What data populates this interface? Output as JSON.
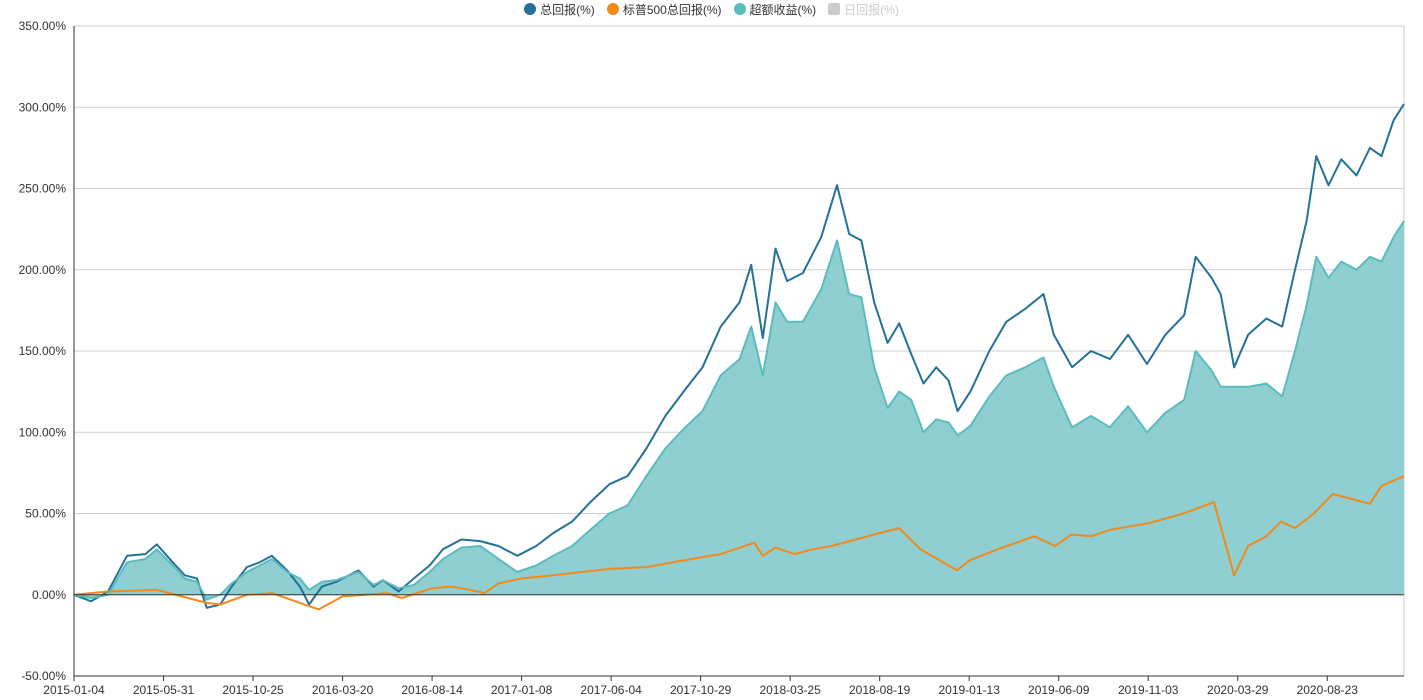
{
  "legend": {
    "items": [
      {
        "label": "总回报(%)",
        "color": "#24719a",
        "active": true
      },
      {
        "label": "标普500总回报(%)",
        "color": "#f2891c",
        "active": true
      },
      {
        "label": "超额收益(%)",
        "color": "#5bbcbd",
        "active": true
      },
      {
        "label": "日回报(%)",
        "color": "#cccccc",
        "active": false
      }
    ]
  },
  "chart_data": {
    "type": "line",
    "grid": true,
    "legend_position": "top-center",
    "ylim": [
      -50,
      350
    ],
    "y_ticks": [
      "-50.00%",
      "0.00%",
      "50.00%",
      "100.00%",
      "150.00%",
      "200.00%",
      "250.00%",
      "300.00%",
      "350.00%"
    ],
    "y_tick_values": [
      -50,
      0,
      50,
      100,
      150,
      200,
      250,
      300,
      350
    ],
    "x_ticks": [
      "2015-01-04",
      "2015-05-31",
      "2015-10-25",
      "2016-03-20",
      "2016-08-14",
      "2017-01-08",
      "2017-06-04",
      "2017-10-29",
      "2018-03-25",
      "2018-08-19",
      "2019-01-13",
      "2019-06-09",
      "2019-11-03",
      "2020-03-29",
      "2020-08-23"
    ],
    "x_range": [
      "2015-01-04",
      "2020-12-27"
    ],
    "series": [
      {
        "name": "总回报(%)",
        "style": "line",
        "color": "#24719a",
        "points": [
          [
            "2015-01-04",
            0
          ],
          [
            "2015-02-01",
            -4
          ],
          [
            "2015-03-01",
            2
          ],
          [
            "2015-04-01",
            24
          ],
          [
            "2015-05-01",
            25
          ],
          [
            "2015-05-20",
            31
          ],
          [
            "2015-06-15",
            20
          ],
          [
            "2015-07-05",
            12
          ],
          [
            "2015-07-25",
            10
          ],
          [
            "2015-08-10",
            -8
          ],
          [
            "2015-09-01",
            -6
          ],
          [
            "2015-09-20",
            5
          ],
          [
            "2015-10-15",
            17
          ],
          [
            "2015-11-05",
            20
          ],
          [
            "2015-11-25",
            24
          ],
          [
            "2015-12-20",
            15
          ],
          [
            "2016-01-10",
            5
          ],
          [
            "2016-01-25",
            -6
          ],
          [
            "2016-02-15",
            5
          ],
          [
            "2016-03-10",
            8
          ],
          [
            "2016-04-15",
            15
          ],
          [
            "2016-05-10",
            5
          ],
          [
            "2016-05-25",
            9
          ],
          [
            "2016-06-20",
            2
          ],
          [
            "2016-07-15",
            10
          ],
          [
            "2016-08-10",
            18
          ],
          [
            "2016-09-01",
            28
          ],
          [
            "2016-10-01",
            34
          ],
          [
            "2016-11-01",
            33
          ],
          [
            "2016-12-01",
            30
          ],
          [
            "2017-01-01",
            24
          ],
          [
            "2017-02-01",
            30
          ],
          [
            "2017-03-01",
            38
          ],
          [
            "2017-04-01",
            45
          ],
          [
            "2017-05-01",
            57
          ],
          [
            "2017-06-01",
            68
          ],
          [
            "2017-07-01",
            73
          ],
          [
            "2017-08-01",
            90
          ],
          [
            "2017-09-01",
            110
          ],
          [
            "2017-10-01",
            125
          ],
          [
            "2017-11-01",
            140
          ],
          [
            "2017-12-01",
            165
          ],
          [
            "2018-01-01",
            180
          ],
          [
            "2018-01-20",
            203
          ],
          [
            "2018-02-08",
            158
          ],
          [
            "2018-03-01",
            213
          ],
          [
            "2018-03-20",
            193
          ],
          [
            "2018-04-15",
            198
          ],
          [
            "2018-05-15",
            220
          ],
          [
            "2018-06-10",
            252
          ],
          [
            "2018-06-30",
            222
          ],
          [
            "2018-07-20",
            218
          ],
          [
            "2018-08-10",
            180
          ],
          [
            "2018-09-01",
            155
          ],
          [
            "2018-09-20",
            167
          ],
          [
            "2018-10-10",
            148
          ],
          [
            "2018-10-30",
            130
          ],
          [
            "2018-11-20",
            140
          ],
          [
            "2018-12-10",
            132
          ],
          [
            "2018-12-25",
            113
          ],
          [
            "2019-01-15",
            125
          ],
          [
            "2019-02-15",
            150
          ],
          [
            "2019-03-15",
            168
          ],
          [
            "2019-04-15",
            176
          ],
          [
            "2019-05-15",
            185
          ],
          [
            "2019-06-01",
            160
          ],
          [
            "2019-07-01",
            140
          ],
          [
            "2019-08-01",
            150
          ],
          [
            "2019-09-01",
            145
          ],
          [
            "2019-10-01",
            160
          ],
          [
            "2019-11-01",
            142
          ],
          [
            "2019-12-01",
            160
          ],
          [
            "2020-01-01",
            172
          ],
          [
            "2020-01-20",
            208
          ],
          [
            "2020-02-15",
            195
          ],
          [
            "2020-03-01",
            185
          ],
          [
            "2020-03-23",
            140
          ],
          [
            "2020-04-15",
            160
          ],
          [
            "2020-05-15",
            170
          ],
          [
            "2020-06-10",
            165
          ],
          [
            "2020-07-01",
            200
          ],
          [
            "2020-07-20",
            230
          ],
          [
            "2020-08-05",
            270
          ],
          [
            "2020-08-25",
            252
          ],
          [
            "2020-09-15",
            268
          ],
          [
            "2020-10-10",
            258
          ],
          [
            "2020-11-01",
            275
          ],
          [
            "2020-11-20",
            270
          ],
          [
            "2020-12-10",
            292
          ],
          [
            "2020-12-27",
            302
          ]
        ]
      },
      {
        "name": "标普500总回报(%)",
        "style": "line",
        "color": "#f2891c",
        "points": [
          [
            "2015-01-04",
            0
          ],
          [
            "2015-03-01",
            2
          ],
          [
            "2015-05-20",
            3
          ],
          [
            "2015-08-10",
            -5
          ],
          [
            "2015-09-01",
            -6
          ],
          [
            "2015-10-15",
            0
          ],
          [
            "2015-11-25",
            1
          ],
          [
            "2016-01-10",
            -5
          ],
          [
            "2016-02-10",
            -9
          ],
          [
            "2016-03-20",
            -1
          ],
          [
            "2016-06-01",
            1
          ],
          [
            "2016-06-25",
            -2
          ],
          [
            "2016-08-14",
            4
          ],
          [
            "2016-09-15",
            5
          ],
          [
            "2016-10-15",
            3
          ],
          [
            "2016-11-08",
            1
          ],
          [
            "2016-12-01",
            7
          ],
          [
            "2017-01-08",
            10
          ],
          [
            "2017-03-01",
            12
          ],
          [
            "2017-06-04",
            16
          ],
          [
            "2017-08-01",
            17
          ],
          [
            "2017-10-29",
            23
          ],
          [
            "2017-12-01",
            25
          ],
          [
            "2018-01-25",
            32
          ],
          [
            "2018-02-08",
            24
          ],
          [
            "2018-03-01",
            29
          ],
          [
            "2018-04-01",
            25
          ],
          [
            "2018-05-01",
            28
          ],
          [
            "2018-06-01",
            30
          ],
          [
            "2018-07-01",
            33
          ],
          [
            "2018-08-19",
            38
          ],
          [
            "2018-09-20",
            41
          ],
          [
            "2018-10-25",
            28
          ],
          [
            "2018-12-24",
            15
          ],
          [
            "2019-01-13",
            21
          ],
          [
            "2019-03-01",
            28
          ],
          [
            "2019-04-30",
            36
          ],
          [
            "2019-06-03",
            30
          ],
          [
            "2019-06-30",
            37
          ],
          [
            "2019-08-01",
            36
          ],
          [
            "2019-09-01",
            40
          ],
          [
            "2019-11-03",
            44
          ],
          [
            "2019-12-31",
            50
          ],
          [
            "2020-02-19",
            57
          ],
          [
            "2020-03-23",
            12
          ],
          [
            "2020-04-15",
            30
          ],
          [
            "2020-05-15",
            36
          ],
          [
            "2020-06-08",
            45
          ],
          [
            "2020-07-01",
            41
          ],
          [
            "2020-08-01",
            50
          ],
          [
            "2020-09-01",
            62
          ],
          [
            "2020-10-01",
            59
          ],
          [
            "2020-11-01",
            56
          ],
          [
            "2020-11-20",
            67
          ],
          [
            "2020-12-27",
            73
          ]
        ]
      },
      {
        "name": "超额收益(%)",
        "style": "area",
        "color": "#5bbcbd",
        "fill": "#8fcfd1",
        "points": [
          [
            "2015-01-04",
            0
          ],
          [
            "2015-02-01",
            -2
          ],
          [
            "2015-03-01",
            0
          ],
          [
            "2015-04-01",
            20
          ],
          [
            "2015-05-01",
            22
          ],
          [
            "2015-05-20",
            28
          ],
          [
            "2015-06-15",
            18
          ],
          [
            "2015-07-05",
            10
          ],
          [
            "2015-07-25",
            8
          ],
          [
            "2015-08-10",
            -3
          ],
          [
            "2015-09-01",
            0
          ],
          [
            "2015-09-20",
            7
          ],
          [
            "2015-10-15",
            14
          ],
          [
            "2015-11-05",
            18
          ],
          [
            "2015-11-25",
            22
          ],
          [
            "2015-12-20",
            14
          ],
          [
            "2016-01-10",
            10
          ],
          [
            "2016-01-25",
            3
          ],
          [
            "2016-02-15",
            8
          ],
          [
            "2016-03-10",
            9
          ],
          [
            "2016-04-15",
            14
          ],
          [
            "2016-05-10",
            6
          ],
          [
            "2016-05-25",
            9
          ],
          [
            "2016-06-20",
            4
          ],
          [
            "2016-07-15",
            6
          ],
          [
            "2016-08-10",
            14
          ],
          [
            "2016-09-01",
            22
          ],
          [
            "2016-10-01",
            29
          ],
          [
            "2016-11-01",
            30
          ],
          [
            "2016-12-01",
            22
          ],
          [
            "2017-01-01",
            14
          ],
          [
            "2017-02-01",
            18
          ],
          [
            "2017-03-01",
            24
          ],
          [
            "2017-04-01",
            30
          ],
          [
            "2017-05-01",
            40
          ],
          [
            "2017-06-01",
            50
          ],
          [
            "2017-07-01",
            55
          ],
          [
            "2017-08-01",
            73
          ],
          [
            "2017-09-01",
            90
          ],
          [
            "2017-10-01",
            102
          ],
          [
            "2017-11-01",
            113
          ],
          [
            "2017-12-01",
            135
          ],
          [
            "2018-01-01",
            145
          ],
          [
            "2018-01-20",
            165
          ],
          [
            "2018-02-08",
            135
          ],
          [
            "2018-03-01",
            180
          ],
          [
            "2018-03-20",
            168
          ],
          [
            "2018-04-15",
            168
          ],
          [
            "2018-05-15",
            188
          ],
          [
            "2018-06-10",
            218
          ],
          [
            "2018-06-30",
            185
          ],
          [
            "2018-07-20",
            183
          ],
          [
            "2018-08-10",
            140
          ],
          [
            "2018-09-01",
            115
          ],
          [
            "2018-09-20",
            125
          ],
          [
            "2018-10-10",
            120
          ],
          [
            "2018-10-30",
            100
          ],
          [
            "2018-11-20",
            108
          ],
          [
            "2018-12-10",
            106
          ],
          [
            "2018-12-25",
            98
          ],
          [
            "2019-01-15",
            104
          ],
          [
            "2019-02-15",
            122
          ],
          [
            "2019-03-15",
            135
          ],
          [
            "2019-04-15",
            140
          ],
          [
            "2019-05-15",
            146
          ],
          [
            "2019-06-01",
            128
          ],
          [
            "2019-07-01",
            103
          ],
          [
            "2019-08-01",
            110
          ],
          [
            "2019-09-01",
            103
          ],
          [
            "2019-10-01",
            116
          ],
          [
            "2019-11-01",
            100
          ],
          [
            "2019-12-01",
            112
          ],
          [
            "2020-01-01",
            120
          ],
          [
            "2020-01-20",
            150
          ],
          [
            "2020-02-15",
            138
          ],
          [
            "2020-03-01",
            128
          ],
          [
            "2020-03-23",
            128
          ],
          [
            "2020-04-15",
            128
          ],
          [
            "2020-05-15",
            130
          ],
          [
            "2020-06-10",
            122
          ],
          [
            "2020-07-01",
            150
          ],
          [
            "2020-07-20",
            178
          ],
          [
            "2020-08-05",
            208
          ],
          [
            "2020-08-25",
            195
          ],
          [
            "2020-09-15",
            205
          ],
          [
            "2020-10-10",
            200
          ],
          [
            "2020-11-01",
            208
          ],
          [
            "2020-11-20",
            205
          ],
          [
            "2020-12-10",
            220
          ],
          [
            "2020-12-27",
            230
          ]
        ]
      }
    ]
  }
}
